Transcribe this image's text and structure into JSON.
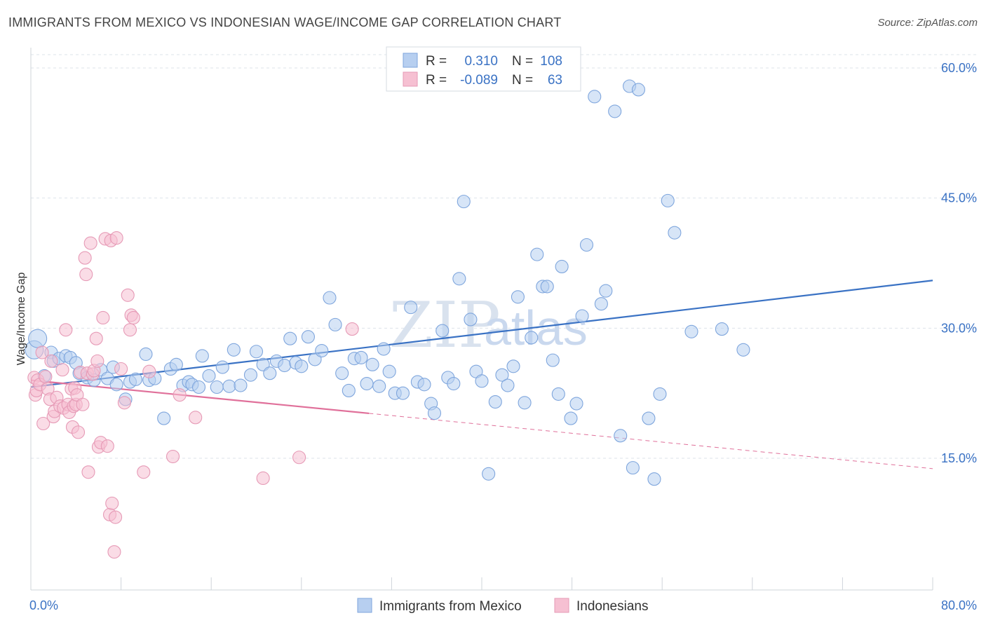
{
  "title": "IMMIGRANTS FROM MEXICO VS INDONESIAN WAGE/INCOME GAP CORRELATION CHART",
  "source": "Source: ZipAtlas.com",
  "watermark": {
    "zip": "ZIP",
    "atlas": "atlas"
  },
  "colors": {
    "blue": "#3a72c4",
    "blue_fill": "#b7cff0",
    "pink": "#e0709a",
    "pink_fill": "#f6c0d2",
    "grid": "#dde3ea"
  },
  "legend": {
    "rows": [
      {
        "r_label": "R =",
        "r_value": "0.310",
        "n_label": "N =",
        "n_value": "108"
      },
      {
        "r_label": "R =",
        "r_value": "-0.089",
        "n_label": "N =",
        "n_value": "63"
      }
    ]
  },
  "chart_data": {
    "type": "scatter",
    "ylabel": "Wage/Income Gap",
    "x_tick_labels": [
      "0.0%",
      "80.0%"
    ],
    "y_tick_labels": [
      "15.0%",
      "30.0%",
      "45.0%",
      "60.0%"
    ],
    "y_ticks": [
      15,
      30,
      45,
      60
    ],
    "xlim": [
      0,
      80
    ],
    "ylim": [
      0,
      62
    ],
    "grid": true,
    "legend_position": "top-center",
    "series": [
      {
        "name": "Immigrants from Mexico",
        "trend": {
          "x0": 0,
          "y0": 23.2,
          "x1": 80,
          "y1": 35.5,
          "solid_to": 80
        },
        "points": [
          [
            0.3,
            27.5
          ],
          [
            0.6,
            28.8
          ],
          [
            1.2,
            24.5
          ],
          [
            1.8,
            27.2
          ],
          [
            2.0,
            26.2
          ],
          [
            2.5,
            26.5
          ],
          [
            3.1,
            26.8
          ],
          [
            3.5,
            26.6
          ],
          [
            4.0,
            26.0
          ],
          [
            4.3,
            24.8
          ],
          [
            5.0,
            24.3
          ],
          [
            5.6,
            24.0
          ],
          [
            6.2,
            25.2
          ],
          [
            6.8,
            24.2
          ],
          [
            7.3,
            25.5
          ],
          [
            7.6,
            23.5
          ],
          [
            8.4,
            21.8
          ],
          [
            8.8,
            23.8
          ],
          [
            9.3,
            24.1
          ],
          [
            10.2,
            27.0
          ],
          [
            10.5,
            24.0
          ],
          [
            11.0,
            24.2
          ],
          [
            11.8,
            19.6
          ],
          [
            12.4,
            25.3
          ],
          [
            12.9,
            25.8
          ],
          [
            13.5,
            23.4
          ],
          [
            14.0,
            23.8
          ],
          [
            14.3,
            23.5
          ],
          [
            14.9,
            23.2
          ],
          [
            15.2,
            26.8
          ],
          [
            15.8,
            24.5
          ],
          [
            16.5,
            23.2
          ],
          [
            17.0,
            25.5
          ],
          [
            17.6,
            23.3
          ],
          [
            18.0,
            27.5
          ],
          [
            18.6,
            23.4
          ],
          [
            19.5,
            24.6
          ],
          [
            20.0,
            27.3
          ],
          [
            20.6,
            25.8
          ],
          [
            21.2,
            24.8
          ],
          [
            21.8,
            26.2
          ],
          [
            22.5,
            25.7
          ],
          [
            23.0,
            28.8
          ],
          [
            23.5,
            26.0
          ],
          [
            24.0,
            25.6
          ],
          [
            24.6,
            29.0
          ],
          [
            25.2,
            26.4
          ],
          [
            25.8,
            27.4
          ],
          [
            26.5,
            33.5
          ],
          [
            27.0,
            30.4
          ],
          [
            27.6,
            24.8
          ],
          [
            28.2,
            22.8
          ],
          [
            28.7,
            26.5
          ],
          [
            29.3,
            26.6
          ],
          [
            29.8,
            23.6
          ],
          [
            30.3,
            25.8
          ],
          [
            30.9,
            23.3
          ],
          [
            31.3,
            27.6
          ],
          [
            31.8,
            25.0
          ],
          [
            32.3,
            22.5
          ],
          [
            33.0,
            22.5
          ],
          [
            33.7,
            32.4
          ],
          [
            34.3,
            23.8
          ],
          [
            34.9,
            23.5
          ],
          [
            35.5,
            21.3
          ],
          [
            35.8,
            20.2
          ],
          [
            36.5,
            29.7
          ],
          [
            37.0,
            24.3
          ],
          [
            37.5,
            23.6
          ],
          [
            38.0,
            35.7
          ],
          [
            38.4,
            44.6
          ],
          [
            39.0,
            31.0
          ],
          [
            39.5,
            25.0
          ],
          [
            40.0,
            23.9
          ],
          [
            40.6,
            13.2
          ],
          [
            41.2,
            21.5
          ],
          [
            41.8,
            24.6
          ],
          [
            42.3,
            23.4
          ],
          [
            42.8,
            25.6
          ],
          [
            43.2,
            33.6
          ],
          [
            43.8,
            21.4
          ],
          [
            44.4,
            28.9
          ],
          [
            44.9,
            38.5
          ],
          [
            45.4,
            34.8
          ],
          [
            45.8,
            34.8
          ],
          [
            46.3,
            26.3
          ],
          [
            46.8,
            22.4
          ],
          [
            47.1,
            37.1
          ],
          [
            47.9,
            19.6
          ],
          [
            48.4,
            21.3
          ],
          [
            48.9,
            31.4
          ],
          [
            49.3,
            39.6
          ],
          [
            50.0,
            56.7
          ],
          [
            50.6,
            32.8
          ],
          [
            51.0,
            34.3
          ],
          [
            51.8,
            55.0
          ],
          [
            52.3,
            17.6
          ],
          [
            53.1,
            57.9
          ],
          [
            53.4,
            13.9
          ],
          [
            53.9,
            57.5
          ],
          [
            54.8,
            19.6
          ],
          [
            55.3,
            12.6
          ],
          [
            55.8,
            22.4
          ],
          [
            56.5,
            44.7
          ],
          [
            57.1,
            41.0
          ],
          [
            58.6,
            29.6
          ],
          [
            61.3,
            29.9
          ],
          [
            63.2,
            27.5
          ]
        ]
      },
      {
        "name": "Indonesians",
        "trend": {
          "x0": 0,
          "y0": 24.0,
          "x1": 80,
          "y1": 13.8,
          "solid_to": 30
        },
        "points": [
          [
            0.3,
            24.3
          ],
          [
            0.4,
            22.3
          ],
          [
            0.5,
            22.8
          ],
          [
            0.6,
            24.0
          ],
          [
            0.8,
            23.5
          ],
          [
            1.0,
            27.2
          ],
          [
            1.1,
            19.0
          ],
          [
            1.3,
            24.4
          ],
          [
            1.5,
            23.0
          ],
          [
            1.7,
            21.8
          ],
          [
            1.8,
            26.2
          ],
          [
            2.0,
            19.8
          ],
          [
            2.1,
            20.4
          ],
          [
            2.3,
            22.0
          ],
          [
            2.6,
            21.0
          ],
          [
            2.8,
            25.2
          ],
          [
            2.9,
            20.8
          ],
          [
            3.1,
            29.8
          ],
          [
            3.3,
            21.2
          ],
          [
            3.4,
            20.3
          ],
          [
            3.6,
            23.0
          ],
          [
            3.7,
            18.6
          ],
          [
            3.8,
            21.0
          ],
          [
            3.9,
            23.1
          ],
          [
            4.0,
            21.2
          ],
          [
            4.1,
            22.3
          ],
          [
            4.2,
            18.0
          ],
          [
            4.4,
            24.9
          ],
          [
            4.6,
            21.2
          ],
          [
            4.8,
            38.1
          ],
          [
            4.9,
            36.2
          ],
          [
            5.0,
            24.8
          ],
          [
            5.1,
            13.4
          ],
          [
            5.3,
            39.8
          ],
          [
            5.5,
            24.7
          ],
          [
            5.6,
            25.1
          ],
          [
            5.8,
            28.8
          ],
          [
            5.9,
            26.2
          ],
          [
            6.0,
            16.3
          ],
          [
            6.2,
            16.8
          ],
          [
            6.4,
            31.2
          ],
          [
            6.6,
            40.3
          ],
          [
            6.8,
            16.4
          ],
          [
            7.0,
            8.5
          ],
          [
            7.1,
            40.1
          ],
          [
            7.2,
            9.8
          ],
          [
            7.4,
            4.2
          ],
          [
            7.5,
            8.2
          ],
          [
            7.6,
            40.4
          ],
          [
            8.0,
            25.3
          ],
          [
            8.3,
            21.4
          ],
          [
            8.6,
            33.8
          ],
          [
            8.8,
            29.8
          ],
          [
            8.9,
            31.5
          ],
          [
            9.1,
            31.2
          ],
          [
            10.0,
            13.4
          ],
          [
            10.5,
            25.0
          ],
          [
            12.6,
            15.2
          ],
          [
            13.2,
            22.3
          ],
          [
            14.6,
            19.7
          ],
          [
            20.6,
            12.7
          ],
          [
            23.8,
            15.1
          ],
          [
            28.5,
            29.9
          ]
        ]
      }
    ]
  },
  "bottom_legend": [
    "Immigrants from Mexico",
    "Indonesians"
  ]
}
